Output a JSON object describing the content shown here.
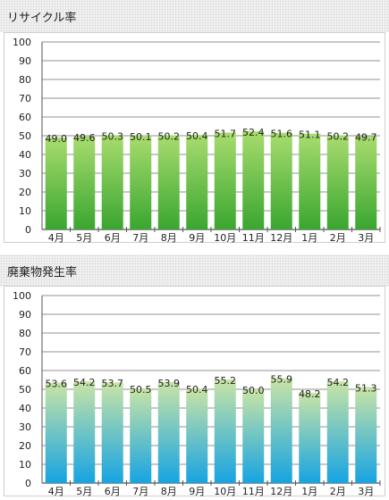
{
  "chart_data": [
    {
      "type": "bar",
      "title": "リサイクル率",
      "categories": [
        "4月",
        "5月",
        "6月",
        "7月",
        "8月",
        "9月",
        "10月",
        "11月",
        "12月",
        "1月",
        "2月",
        "3月"
      ],
      "values": [
        49.0,
        49.6,
        50.3,
        50.1,
        50.2,
        50.4,
        51.7,
        52.4,
        51.6,
        51.1,
        50.2,
        49.7
      ],
      "value_labels": [
        "49.0",
        "49.6",
        "50.3",
        "50.1",
        "50.2",
        "50.4",
        "51.7",
        "52.4",
        "51.6",
        "51.1",
        "50.2",
        "49.7"
      ],
      "yticks": [
        "0",
        "10",
        "20",
        "30",
        "40",
        "50",
        "60",
        "70",
        "80",
        "90",
        "100"
      ],
      "ylim": [
        0,
        100
      ],
      "grid": true,
      "colors": {
        "bar_top": "#a8dc6e",
        "bar_bottom": "#3aa630"
      }
    },
    {
      "type": "bar",
      "title": "廃棄物発生率",
      "categories": [
        "4月",
        "5月",
        "6月",
        "7月",
        "8月",
        "9月",
        "10月",
        "11月",
        "12月",
        "1月",
        "2月",
        "3月"
      ],
      "values": [
        53.6,
        54.2,
        53.7,
        50.5,
        53.9,
        50.4,
        55.2,
        50.0,
        55.9,
        48.2,
        54.2,
        51.3
      ],
      "value_labels": [
        "53.6",
        "54.2",
        "53.7",
        "50.5",
        "53.9",
        "50.4",
        "55.2",
        "50.0",
        "55.9",
        "48.2",
        "54.2",
        "51.3"
      ],
      "yticks": [
        "0",
        "10",
        "20",
        "30",
        "40",
        "50",
        "60",
        "70",
        "80",
        "90",
        "100"
      ],
      "ylim": [
        0,
        100
      ],
      "grid": true,
      "colors": {
        "bar_top": "#c9e4a6",
        "bar_bottom": "#16a4e2"
      }
    }
  ]
}
